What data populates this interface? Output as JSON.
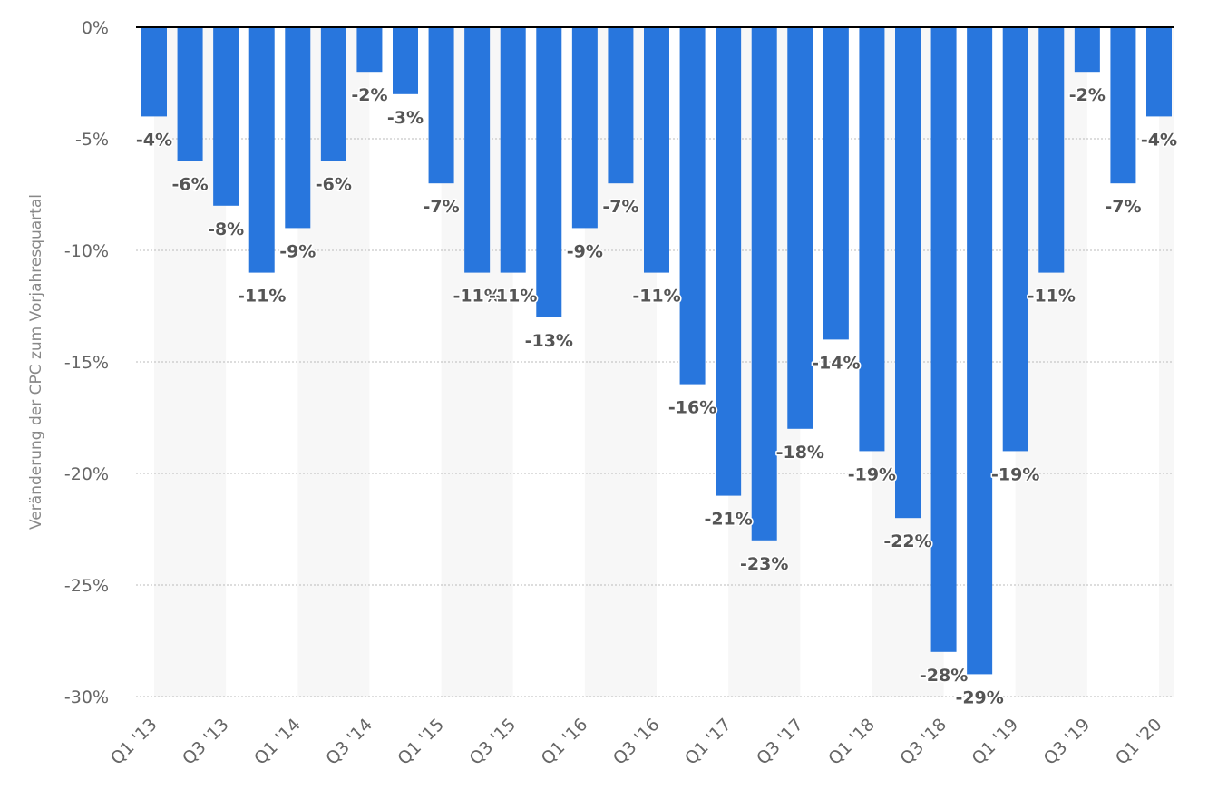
{
  "chart_data": {
    "type": "bar",
    "ylabel": "Veränderung der CPC zum Vorjahresquartal",
    "xlabel": "",
    "ylim": [
      -30,
      0
    ],
    "yticks": [
      0,
      -5,
      -10,
      -15,
      -20,
      -25,
      -30
    ],
    "ytick_labels": [
      "0%",
      "-5%",
      "-10%",
      "-15%",
      "-20%",
      "-25%",
      "-30%"
    ],
    "grid": true,
    "bar_color": "#2876dd",
    "stripe_color": "#f7f7f7",
    "grid_color": "#bbbbbb",
    "zero_line_color": "#000000",
    "categories": [
      "Q1 '13",
      "Q2 '13",
      "Q3 '13",
      "Q4 '13",
      "Q1 '14",
      "Q2 '14",
      "Q3 '14",
      "Q4 '14",
      "Q1 '15",
      "Q2 '15",
      "Q3 '15",
      "Q4 '15",
      "Q1 '16",
      "Q2 '16",
      "Q3 '16",
      "Q4 '16",
      "Q1 '17",
      "Q2 '17",
      "Q3 '17",
      "Q4 '17",
      "Q1 '18",
      "Q2 '18",
      "Q3 '18",
      "Q4 '18",
      "Q1 '19",
      "Q2 '19",
      "Q3 '19",
      "Q4 '19",
      "Q1 '20"
    ],
    "visible_category_labels": [
      "Q1 '13",
      "",
      "Q3 '13",
      "",
      "Q1 '14",
      "",
      "Q3 '14",
      "",
      "Q1 '15",
      "",
      "Q3 '15",
      "",
      "Q1 '16",
      "",
      "Q3 '16",
      "",
      "Q1 '17",
      "",
      "Q3 '17",
      "",
      "Q1 '18",
      "",
      "Q3 '18",
      "",
      "Q1 '19",
      "",
      "Q3 '19",
      "",
      "Q1 '20"
    ],
    "values": [
      -4,
      -6,
      -8,
      -11,
      -9,
      -6,
      -2,
      -3,
      -7,
      -11,
      -11,
      -13,
      -9,
      -7,
      -11,
      -16,
      -21,
      -23,
      -18,
      -14,
      -19,
      -22,
      -28,
      -29,
      -19,
      -11,
      -2,
      -7,
      -4
    ],
    "data_labels": [
      "-4%",
      "-6%",
      "-8%",
      "-11%",
      "-9%",
      "-6%",
      "-2%",
      "-3%",
      "-7%",
      "-11%",
      "-11%",
      "-13%",
      "-9%",
      "-7%",
      "-11%",
      "-16%",
      "-21%",
      "-23%",
      "-18%",
      "-14%",
      "-19%",
      "-22%",
      "-28%",
      "-29%",
      "-19%",
      "-11%",
      "-2%",
      "-7%",
      "-4%"
    ]
  }
}
